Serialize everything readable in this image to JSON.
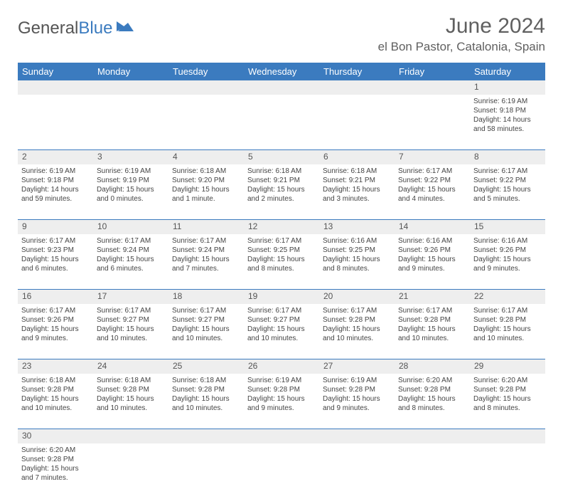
{
  "logo": {
    "text1": "General",
    "text2": "Blue"
  },
  "title": "June 2024",
  "location": "el Bon Pastor, Catalonia, Spain",
  "colors": {
    "header_bg": "#3b7bbf",
    "header_fg": "#ffffff",
    "text": "#555555",
    "daybg": "#eeeeee"
  },
  "days_of_week": [
    "Sunday",
    "Monday",
    "Tuesday",
    "Wednesday",
    "Thursday",
    "Friday",
    "Saturday"
  ],
  "weeks": [
    [
      null,
      null,
      null,
      null,
      null,
      null,
      {
        "n": "1",
        "sr": "6:19 AM",
        "ss": "9:18 PM",
        "dl": "14 hours and 58 minutes."
      }
    ],
    [
      {
        "n": "2",
        "sr": "6:19 AM",
        "ss": "9:18 PM",
        "dl": "14 hours and 59 minutes."
      },
      {
        "n": "3",
        "sr": "6:19 AM",
        "ss": "9:19 PM",
        "dl": "15 hours and 0 minutes."
      },
      {
        "n": "4",
        "sr": "6:18 AM",
        "ss": "9:20 PM",
        "dl": "15 hours and 1 minute."
      },
      {
        "n": "5",
        "sr": "6:18 AM",
        "ss": "9:21 PM",
        "dl": "15 hours and 2 minutes."
      },
      {
        "n": "6",
        "sr": "6:18 AM",
        "ss": "9:21 PM",
        "dl": "15 hours and 3 minutes."
      },
      {
        "n": "7",
        "sr": "6:17 AM",
        "ss": "9:22 PM",
        "dl": "15 hours and 4 minutes."
      },
      {
        "n": "8",
        "sr": "6:17 AM",
        "ss": "9:22 PM",
        "dl": "15 hours and 5 minutes."
      }
    ],
    [
      {
        "n": "9",
        "sr": "6:17 AM",
        "ss": "9:23 PM",
        "dl": "15 hours and 6 minutes."
      },
      {
        "n": "10",
        "sr": "6:17 AM",
        "ss": "9:24 PM",
        "dl": "15 hours and 6 minutes."
      },
      {
        "n": "11",
        "sr": "6:17 AM",
        "ss": "9:24 PM",
        "dl": "15 hours and 7 minutes."
      },
      {
        "n": "12",
        "sr": "6:17 AM",
        "ss": "9:25 PM",
        "dl": "15 hours and 8 minutes."
      },
      {
        "n": "13",
        "sr": "6:16 AM",
        "ss": "9:25 PM",
        "dl": "15 hours and 8 minutes."
      },
      {
        "n": "14",
        "sr": "6:16 AM",
        "ss": "9:26 PM",
        "dl": "15 hours and 9 minutes."
      },
      {
        "n": "15",
        "sr": "6:16 AM",
        "ss": "9:26 PM",
        "dl": "15 hours and 9 minutes."
      }
    ],
    [
      {
        "n": "16",
        "sr": "6:17 AM",
        "ss": "9:26 PM",
        "dl": "15 hours and 9 minutes."
      },
      {
        "n": "17",
        "sr": "6:17 AM",
        "ss": "9:27 PM",
        "dl": "15 hours and 10 minutes."
      },
      {
        "n": "18",
        "sr": "6:17 AM",
        "ss": "9:27 PM",
        "dl": "15 hours and 10 minutes."
      },
      {
        "n": "19",
        "sr": "6:17 AM",
        "ss": "9:27 PM",
        "dl": "15 hours and 10 minutes."
      },
      {
        "n": "20",
        "sr": "6:17 AM",
        "ss": "9:28 PM",
        "dl": "15 hours and 10 minutes."
      },
      {
        "n": "21",
        "sr": "6:17 AM",
        "ss": "9:28 PM",
        "dl": "15 hours and 10 minutes."
      },
      {
        "n": "22",
        "sr": "6:17 AM",
        "ss": "9:28 PM",
        "dl": "15 hours and 10 minutes."
      }
    ],
    [
      {
        "n": "23",
        "sr": "6:18 AM",
        "ss": "9:28 PM",
        "dl": "15 hours and 10 minutes."
      },
      {
        "n": "24",
        "sr": "6:18 AM",
        "ss": "9:28 PM",
        "dl": "15 hours and 10 minutes."
      },
      {
        "n": "25",
        "sr": "6:18 AM",
        "ss": "9:28 PM",
        "dl": "15 hours and 10 minutes."
      },
      {
        "n": "26",
        "sr": "6:19 AM",
        "ss": "9:28 PM",
        "dl": "15 hours and 9 minutes."
      },
      {
        "n": "27",
        "sr": "6:19 AM",
        "ss": "9:28 PM",
        "dl": "15 hours and 9 minutes."
      },
      {
        "n": "28",
        "sr": "6:20 AM",
        "ss": "9:28 PM",
        "dl": "15 hours and 8 minutes."
      },
      {
        "n": "29",
        "sr": "6:20 AM",
        "ss": "9:28 PM",
        "dl": "15 hours and 8 minutes."
      }
    ],
    [
      {
        "n": "30",
        "sr": "6:20 AM",
        "ss": "9:28 PM",
        "dl": "15 hours and 7 minutes."
      },
      null,
      null,
      null,
      null,
      null,
      null
    ]
  ],
  "labels": {
    "sunrise": "Sunrise:",
    "sunset": "Sunset:",
    "daylight": "Daylight:"
  }
}
